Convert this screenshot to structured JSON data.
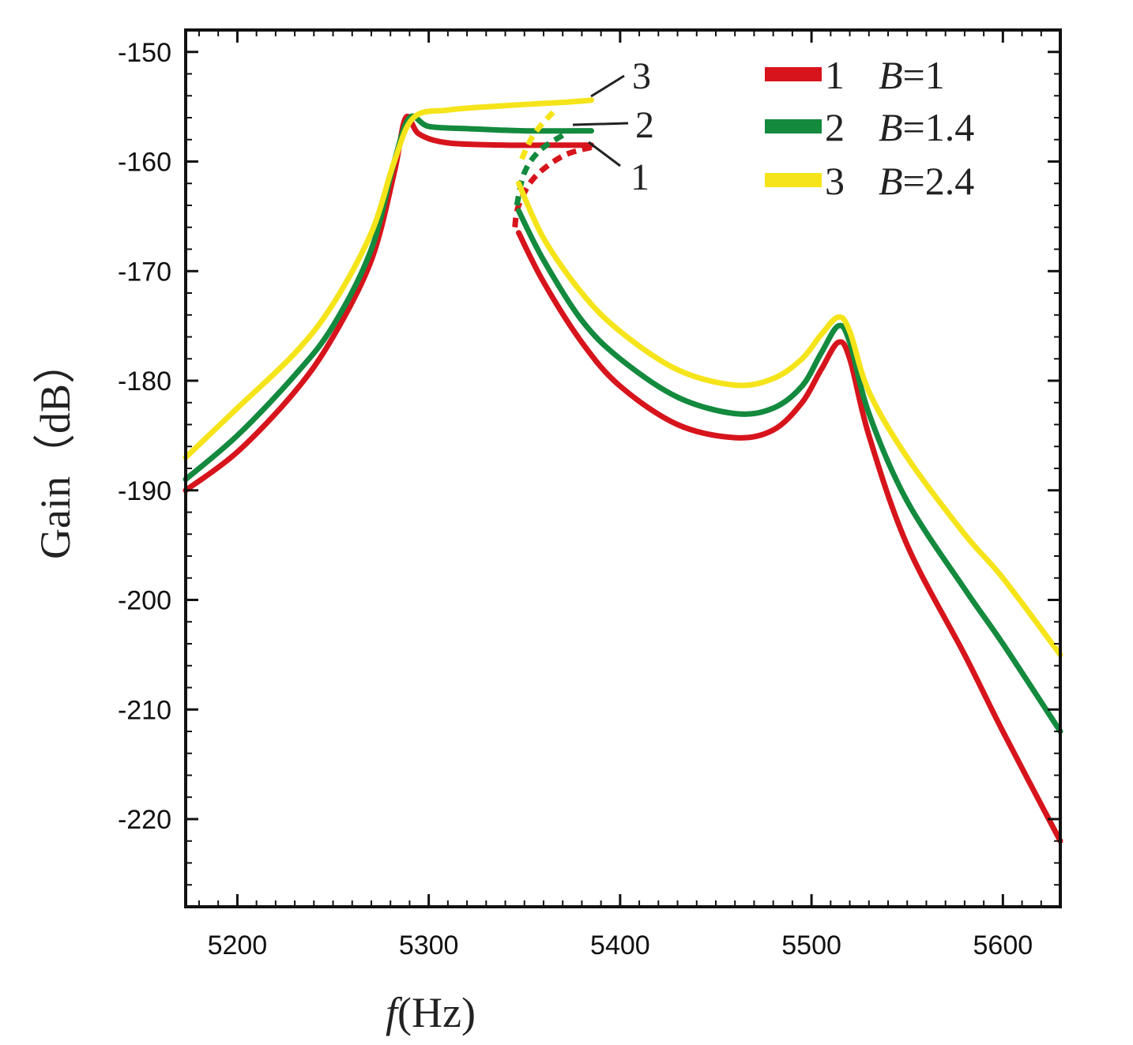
{
  "chart_data": {
    "type": "line",
    "title": "",
    "xlabel_var": "f",
    "xlabel_unit": "(Hz)",
    "ylabel": "Gain（dB）",
    "xlim": [
      5173,
      5630
    ],
    "ylim": [
      -228,
      -148
    ],
    "xticks": [
      5200,
      5300,
      5400,
      5500,
      5600
    ],
    "yticks": [
      -150,
      -160,
      -170,
      -180,
      -190,
      -200,
      -210,
      -220
    ],
    "xtick_labels": [
      "5200",
      "5300",
      "5400",
      "5500",
      "5600"
    ],
    "ytick_labels": [
      "-150",
      "-160",
      "-170",
      "-180",
      "-190",
      "-200",
      "-210",
      "-220"
    ],
    "grid": false,
    "legend_position": "top-right",
    "series": [
      {
        "name": "1",
        "label_num": "1",
        "label_var": "B",
        "label_val": "=1",
        "color": "#d7141c",
        "solid": [
          [
            5173,
            -190
          ],
          [
            5200,
            -186.5
          ],
          [
            5230,
            -181
          ],
          [
            5250,
            -176
          ],
          [
            5270,
            -169
          ],
          [
            5282,
            -161
          ],
          [
            5288,
            -156
          ],
          [
            5295,
            -157.5
          ],
          [
            5310,
            -158.3
          ],
          [
            5340,
            -158.5
          ],
          [
            5370,
            -158.5
          ],
          [
            5385,
            -158.5
          ]
        ],
        "dashed": [
          [
            5385,
            -158.7
          ],
          [
            5370,
            -159.5
          ],
          [
            5355,
            -161.5
          ],
          [
            5347,
            -164
          ],
          [
            5345,
            -166
          ]
        ],
        "lower": [
          [
            5347,
            -166.5
          ],
          [
            5360,
            -171
          ],
          [
            5380,
            -176.5
          ],
          [
            5400,
            -180.5
          ],
          [
            5430,
            -184
          ],
          [
            5460,
            -185.2
          ],
          [
            5480,
            -184.5
          ],
          [
            5495,
            -182
          ],
          [
            5505,
            -179
          ],
          [
            5514,
            -176.5
          ],
          [
            5520,
            -178
          ],
          [
            5530,
            -185
          ],
          [
            5550,
            -195
          ],
          [
            5580,
            -205
          ],
          [
            5600,
            -212
          ],
          [
            5630,
            -222
          ]
        ]
      },
      {
        "name": "2",
        "label_num": "2",
        "label_var": "B",
        "label_val": "=1.4",
        "color": "#138a3e",
        "solid": [
          [
            5173,
            -189
          ],
          [
            5200,
            -185
          ],
          [
            5230,
            -179.5
          ],
          [
            5250,
            -175
          ],
          [
            5270,
            -168
          ],
          [
            5282,
            -160
          ],
          [
            5290,
            -156
          ],
          [
            5300,
            -156.8
          ],
          [
            5320,
            -157
          ],
          [
            5350,
            -157.2
          ],
          [
            5385,
            -157.2
          ]
        ],
        "dashed": [
          [
            5370,
            -157.6
          ],
          [
            5358,
            -159
          ],
          [
            5350,
            -161
          ],
          [
            5346,
            -164
          ]
        ],
        "lower": [
          [
            5347,
            -164.5
          ],
          [
            5360,
            -169
          ],
          [
            5380,
            -174.5
          ],
          [
            5400,
            -178
          ],
          [
            5430,
            -181.5
          ],
          [
            5460,
            -183
          ],
          [
            5480,
            -182.5
          ],
          [
            5495,
            -180.5
          ],
          [
            5505,
            -177.5
          ],
          [
            5514,
            -175
          ],
          [
            5520,
            -176.5
          ],
          [
            5530,
            -183
          ],
          [
            5550,
            -191
          ],
          [
            5580,
            -199
          ],
          [
            5600,
            -204
          ],
          [
            5630,
            -212
          ]
        ]
      },
      {
        "name": "3",
        "label_num": "3",
        "label_var": "B",
        "label_val": "=2.4",
        "color": "#f5e41a",
        "solid": [
          [
            5173,
            -187
          ],
          [
            5200,
            -182.5
          ],
          [
            5230,
            -177.5
          ],
          [
            5250,
            -173
          ],
          [
            5270,
            -166.5
          ],
          [
            5282,
            -160
          ],
          [
            5292,
            -156
          ],
          [
            5310,
            -155.3
          ],
          [
            5340,
            -154.9
          ],
          [
            5370,
            -154.6
          ],
          [
            5385,
            -154.4
          ]
        ],
        "dashed": [
          [
            5365,
            -155.5
          ],
          [
            5355,
            -157.5
          ],
          [
            5348,
            -160
          ]
        ],
        "lower": [
          [
            5347,
            -162
          ],
          [
            5360,
            -167
          ],
          [
            5380,
            -172
          ],
          [
            5400,
            -175.5
          ],
          [
            5430,
            -179
          ],
          [
            5460,
            -180.4
          ],
          [
            5480,
            -179.8
          ],
          [
            5495,
            -178
          ],
          [
            5505,
            -175.8
          ],
          [
            5514,
            -174.2
          ],
          [
            5520,
            -175.5
          ],
          [
            5530,
            -181
          ],
          [
            5550,
            -187
          ],
          [
            5580,
            -194
          ],
          [
            5600,
            -198
          ],
          [
            5630,
            -205
          ]
        ]
      }
    ],
    "callouts": [
      {
        "text": "3",
        "series": "3"
      },
      {
        "text": "2",
        "series": "2"
      },
      {
        "text": "1",
        "series": "1"
      }
    ]
  }
}
